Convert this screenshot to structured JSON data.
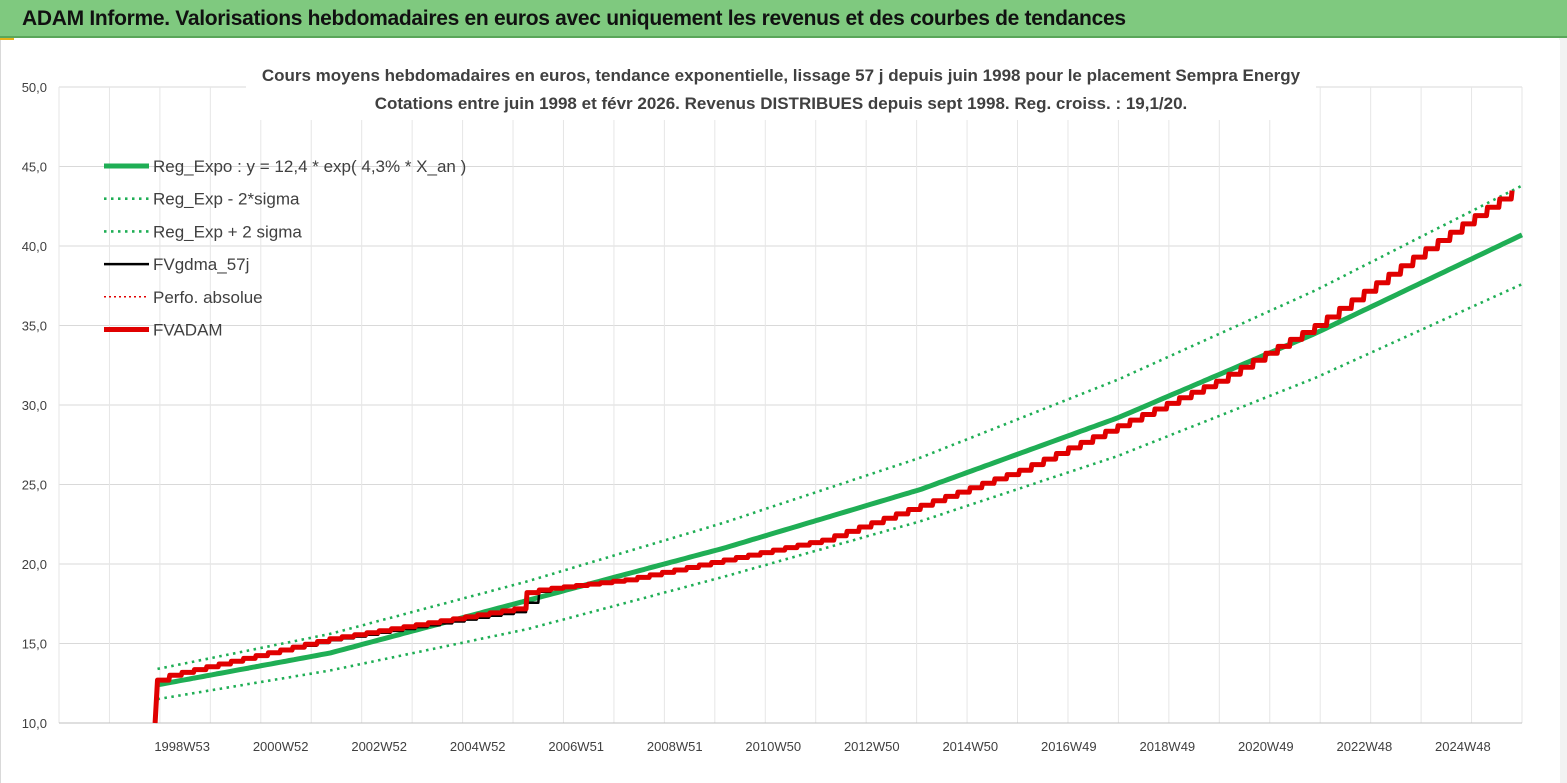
{
  "header": {
    "title": "ADAM Informe. Valorisations hebdomadaires en euros avec uniquement les revenus et des courbes de tendances"
  },
  "colors": {
    "header_bg": "#7fc97f",
    "green": "#1fae55",
    "red": "#e00000",
    "black": "#000000"
  },
  "chart_data": {
    "type": "line",
    "title": "Cours moyens hebdomadaires en euros, tendance exponentielle, lissage 57 j depuis juin 1998 pour le placement Sempra Energy",
    "subtitle": "Cotations entre juin 1998 et févr 2026. Revenus DISTRIBUES depuis sept 1998. Reg. croiss. : 19,1/20.",
    "ylim": [
      10,
      50
    ],
    "yticks": [
      "10,0",
      "15,0",
      "20,0",
      "25,0",
      "30,0",
      "35,0",
      "40,0",
      "45,0",
      "50,0"
    ],
    "xticks": [
      "1998W53",
      "2000W52",
      "2002W52",
      "2004W52",
      "2006W51",
      "2008W51",
      "2010W50",
      "2012W50",
      "2014W50",
      "2016W49",
      "2018W49",
      "2020W49",
      "2022W48",
      "2024W48"
    ],
    "xlim_years": [
      1996.5,
      2026.2
    ],
    "legend": [
      {
        "name": "Reg_Expo : y = 12,4 * exp( 4,3% *  X_an )",
        "style": "solid-thick",
        "color": "#1fae55"
      },
      {
        "name": "Reg_Exp - 2*sigma",
        "style": "dotted",
        "color": "#1fae55"
      },
      {
        "name": "Reg_Exp + 2 sigma",
        "style": "dotted",
        "color": "#1fae55"
      },
      {
        "name": "FVgdma_57j",
        "style": "solid",
        "color": "#000000"
      },
      {
        "name": "Perfo. absolue",
        "style": "dotted-thin",
        "color": "#e00000"
      },
      {
        "name": "FVADAM",
        "style": "solid-thick",
        "color": "#e00000"
      }
    ],
    "legend_position": "top-left",
    "series": [
      {
        "name": "Reg_Expo : y = 12,4 * exp( 4,3% *  X_an )",
        "x": [
          1998.5,
          2002,
          2006,
          2010,
          2014,
          2018,
          2022,
          2026.2
        ],
        "values": [
          12.4,
          14.4,
          17.7,
          21.0,
          24.7,
          29.2,
          34.5,
          40.7
        ]
      },
      {
        "name": "Reg_Exp - 2*sigma",
        "x": [
          1998.5,
          2002,
          2006,
          2010,
          2014,
          2018,
          2022,
          2026.2
        ],
        "values": [
          11.5,
          13.3,
          15.9,
          19.2,
          22.7,
          26.8,
          31.7,
          37.6
        ]
      },
      {
        "name": "Reg_Exp + 2 sigma",
        "x": [
          1998.5,
          2002,
          2006,
          2010,
          2014,
          2018,
          2022,
          2026.2
        ],
        "values": [
          13.4,
          15.6,
          18.9,
          22.6,
          26.7,
          31.6,
          37.2,
          43.8
        ]
      },
      {
        "name": "FVgdma_57j",
        "x": [
          1998.45,
          1998.5,
          1998.6,
          2002,
          2005.8,
          2006.3,
          2008,
          2012,
          2016,
          2020,
          2022,
          2024,
          2026.2
        ],
        "values": [
          10.0,
          12.7,
          12.9,
          15.2,
          17.0,
          18.4,
          19.0,
          21.5,
          25.9,
          31.5,
          35.0,
          39.3,
          43.9
        ]
      },
      {
        "name": "FVADAM",
        "x": [
          1998.45,
          1998.5,
          1998.6,
          2002,
          2005.8,
          2005.85,
          2006.3,
          2008,
          2012,
          2016,
          2020,
          2022,
          2024,
          2026.2
        ],
        "values": [
          10.0,
          12.7,
          12.9,
          15.3,
          17.2,
          18.1,
          18.4,
          19.0,
          21.5,
          25.9,
          31.5,
          35.0,
          39.3,
          43.9
        ]
      }
    ]
  }
}
